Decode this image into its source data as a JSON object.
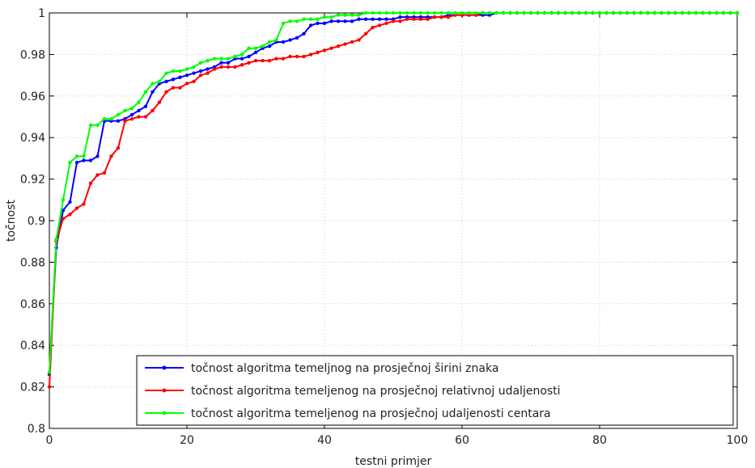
{
  "chart_data": {
    "type": "line",
    "xlabel": "testni primjer",
    "ylabel": "točnost",
    "xlim": [
      0,
      100
    ],
    "ylim": [
      0.8,
      1
    ],
    "xticks": [
      0,
      20,
      40,
      60,
      80,
      100
    ],
    "yticks": [
      0.8,
      0.82,
      0.84,
      0.86,
      0.88,
      0.9,
      0.92,
      0.94,
      0.96,
      0.98,
      1
    ],
    "x": [
      0,
      1,
      2,
      3,
      4,
      5,
      6,
      7,
      8,
      9,
      10,
      11,
      12,
      13,
      14,
      15,
      16,
      17,
      18,
      19,
      20,
      21,
      22,
      23,
      24,
      25,
      26,
      27,
      28,
      29,
      30,
      31,
      32,
      33,
      34,
      35,
      36,
      37,
      38,
      39,
      40,
      41,
      42,
      43,
      44,
      45,
      46,
      47,
      48,
      49,
      50,
      51,
      52,
      53,
      54,
      55,
      56,
      57,
      58,
      59,
      60,
      61,
      62,
      63,
      64,
      65,
      66,
      67,
      68,
      69,
      70,
      71,
      72,
      73,
      74,
      75,
      76,
      77,
      78,
      79,
      80,
      81,
      82,
      83,
      84,
      85,
      86,
      87,
      88,
      89,
      90,
      91,
      92,
      93,
      94,
      95,
      96,
      97,
      98,
      99,
      100
    ],
    "grid": true,
    "legend_position": "bottom-right",
    "series": [
      {
        "name": "točnost algoritma temeljnog na prosječnoj širini znaka",
        "color": "#0000ff",
        "values": [
          0.826,
          0.887,
          0.905,
          0.909,
          0.928,
          0.929,
          0.929,
          0.931,
          0.948,
          0.948,
          0.948,
          0.949,
          0.951,
          0.953,
          0.955,
          0.962,
          0.966,
          0.967,
          0.968,
          0.969,
          0.97,
          0.971,
          0.972,
          0.973,
          0.974,
          0.976,
          0.976,
          0.978,
          0.978,
          0.979,
          0.981,
          0.983,
          0.984,
          0.986,
          0.986,
          0.987,
          0.988,
          0.99,
          0.994,
          0.995,
          0.995,
          0.996,
          0.996,
          0.996,
          0.996,
          0.997,
          0.997,
          0.997,
          0.997,
          0.997,
          0.997,
          0.998,
          0.998,
          0.998,
          0.998,
          0.998,
          0.998,
          0.998,
          0.999,
          0.999,
          0.999,
          0.999,
          0.999,
          0.999,
          0.999,
          1,
          1,
          1,
          1,
          1,
          1,
          1,
          1,
          1,
          1,
          1,
          1,
          1,
          1,
          1,
          1,
          1,
          1,
          1,
          1,
          1,
          1,
          1,
          1,
          1,
          1,
          1,
          1,
          1,
          1,
          1,
          1,
          1,
          1,
          1,
          1
        ]
      },
      {
        "name": "točnost algoritma temeljenog na prosječnoj relativnoj udaljenosti",
        "color": "#ff0000",
        "values": [
          0.82,
          0.89,
          0.901,
          0.903,
          0.906,
          0.908,
          0.918,
          0.922,
          0.923,
          0.931,
          0.935,
          0.948,
          0.949,
          0.95,
          0.95,
          0.953,
          0.957,
          0.962,
          0.964,
          0.964,
          0.966,
          0.967,
          0.97,
          0.971,
          0.973,
          0.974,
          0.974,
          0.974,
          0.975,
          0.976,
          0.977,
          0.977,
          0.977,
          0.978,
          0.978,
          0.979,
          0.979,
          0.979,
          0.98,
          0.981,
          0.982,
          0.983,
          0.984,
          0.985,
          0.986,
          0.987,
          0.99,
          0.993,
          0.994,
          0.995,
          0.996,
          0.996,
          0.997,
          0.997,
          0.997,
          0.997,
          0.998,
          0.998,
          0.998,
          0.999,
          0.999,
          0.999,
          0.999,
          1,
          1,
          1,
          1,
          1,
          1,
          1,
          1,
          1,
          1,
          1,
          1,
          1,
          1,
          1,
          1,
          1,
          1,
          1,
          1,
          1,
          1,
          1,
          1,
          1,
          1,
          1,
          1,
          1,
          1,
          1,
          1,
          1,
          1,
          1,
          1,
          1,
          1
        ]
      },
      {
        "name": "točnost algoritma temeljenog na prosječnoj udaljenosti centara",
        "color": "#00ff00",
        "values": [
          0.827,
          0.891,
          0.91,
          0.928,
          0.931,
          0.931,
          0.946,
          0.946,
          0.949,
          0.949,
          0.951,
          0.953,
          0.954,
          0.957,
          0.962,
          0.966,
          0.967,
          0.971,
          0.972,
          0.972,
          0.973,
          0.974,
          0.976,
          0.977,
          0.978,
          0.978,
          0.978,
          0.979,
          0.98,
          0.983,
          0.983,
          0.984,
          0.986,
          0.987,
          0.995,
          0.996,
          0.996,
          0.997,
          0.997,
          0.997,
          0.998,
          0.998,
          0.999,
          0.999,
          0.999,
          0.999,
          1,
          1,
          1,
          1,
          1,
          1,
          1,
          1,
          1,
          1,
          1,
          1,
          1,
          1,
          1,
          1,
          1,
          1,
          1,
          1,
          1,
          1,
          1,
          1,
          1,
          1,
          1,
          1,
          1,
          1,
          1,
          1,
          1,
          1,
          1,
          1,
          1,
          1,
          1,
          1,
          1,
          1,
          1,
          1,
          1,
          1,
          1,
          1,
          1,
          1,
          1,
          1,
          1,
          1,
          1
        ]
      }
    ]
  }
}
